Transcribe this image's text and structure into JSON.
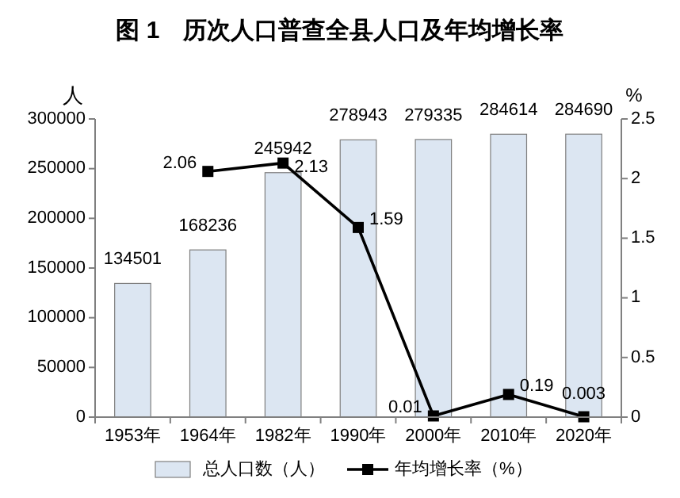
{
  "chart_data": {
    "type": "bar",
    "title": "图 1　历次人口普查全县人口及年均增长率",
    "ylabel": "人",
    "y2label": "%",
    "categories": [
      "1953年",
      "1964年",
      "1982年",
      "1990年",
      "2000年",
      "2010年",
      "2020年"
    ],
    "series": [
      {
        "name": "总人口数（人）",
        "color": "#dce6f2",
        "values": [
          134501,
          168236,
          245942,
          278943,
          279335,
          284614,
          284690
        ]
      },
      {
        "name": "年均增长率（%）",
        "type": "line",
        "axis": "y2",
        "color": "#000000",
        "marker": "square",
        "values": [
          null,
          2.06,
          2.13,
          1.59,
          0.01,
          0.19,
          0.003
        ]
      }
    ],
    "ylim": [
      0,
      300000
    ],
    "yticks": [
      0,
      50000,
      100000,
      150000,
      200000,
      250000,
      300000
    ],
    "y2lim": [
      0,
      2.5
    ],
    "y2ticks": [
      0,
      0.5,
      1,
      1.5,
      2,
      2.5
    ],
    "data_labels": true,
    "legend": "bottom"
  }
}
